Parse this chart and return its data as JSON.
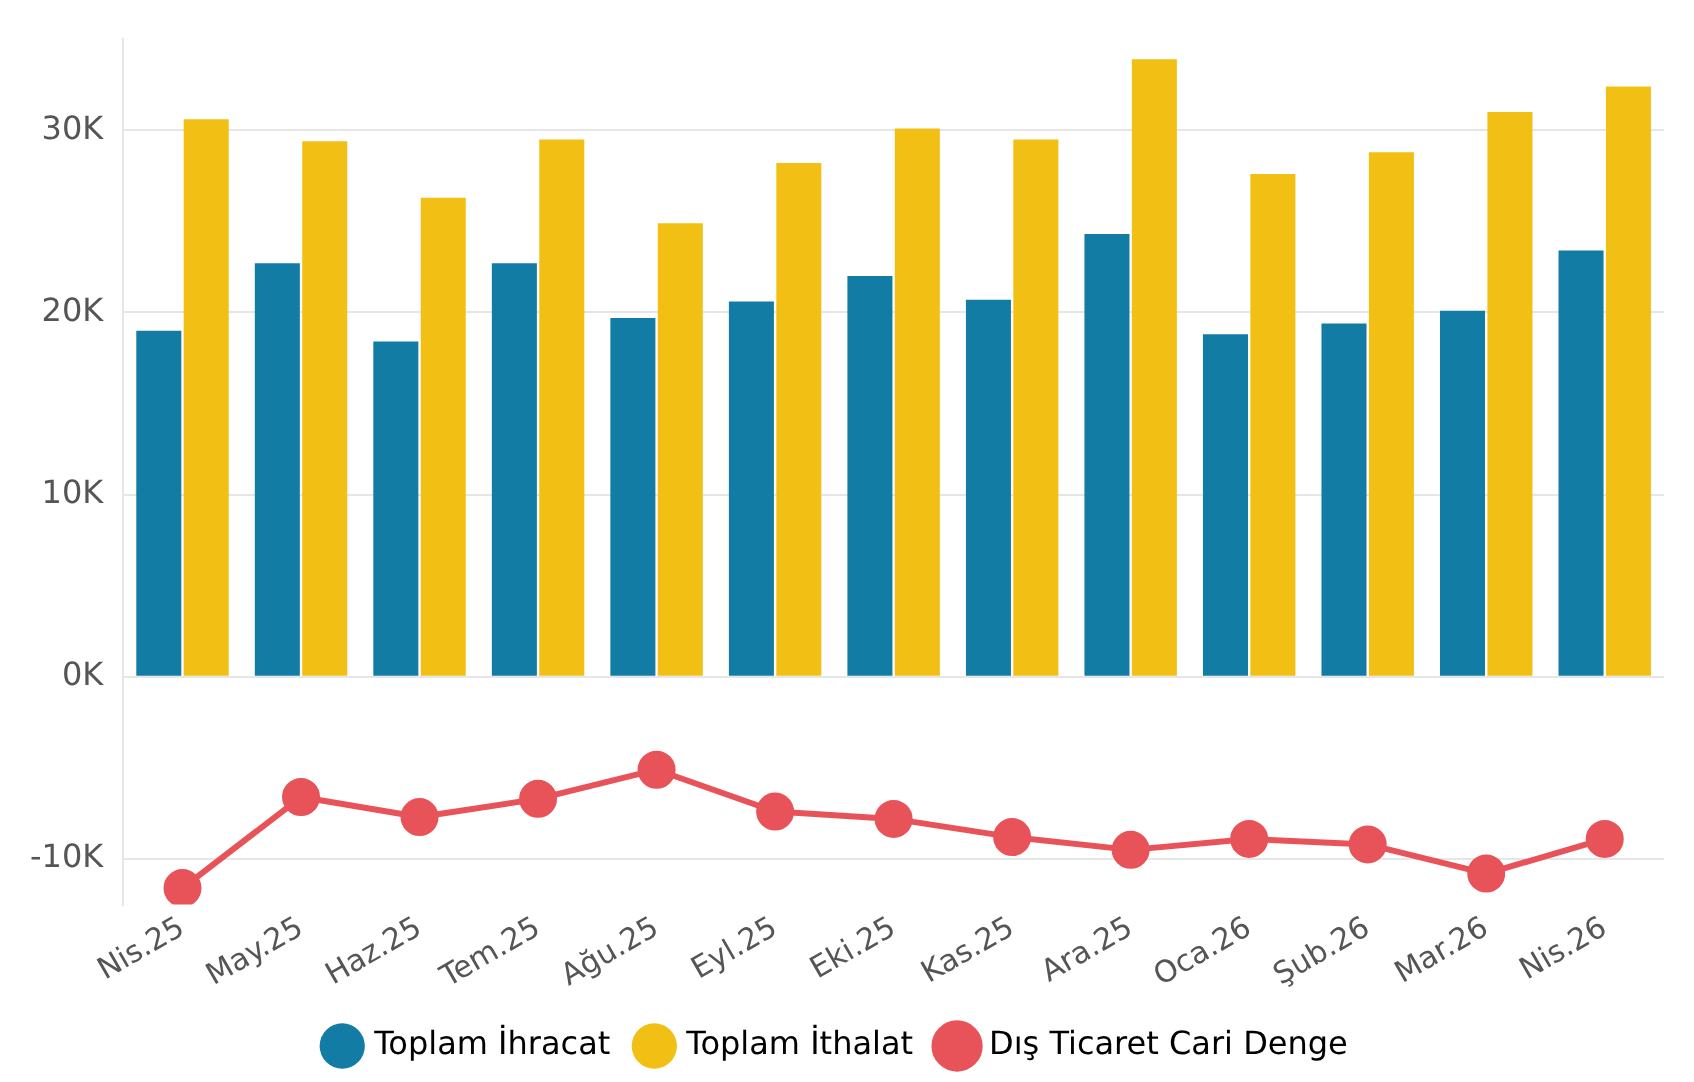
{
  "chart_data": {
    "type": "bar",
    "categories": [
      "Nis.25",
      "May.25",
      "Haz.25",
      "Tem.25",
      "Ağu.25",
      "Eyl.25",
      "Eki.25",
      "Kas.25",
      "Ara.25",
      "Oca.26",
      "Şub.26",
      "Mar.26",
      "Nis.26"
    ],
    "series": [
      {
        "name": "Toplam İhracat",
        "color": "#137ca4",
        "values": [
          19.0,
          22.7,
          18.4,
          22.7,
          19.7,
          20.6,
          22.0,
          20.7,
          24.3,
          18.8,
          19.4,
          20.1,
          23.4
        ]
      },
      {
        "name": "Toplam İthalat",
        "color": "#f2c014",
        "values": [
          30.6,
          29.4,
          26.3,
          29.5,
          24.9,
          28.2,
          30.1,
          29.5,
          33.9,
          27.6,
          28.8,
          31.0,
          32.4
        ]
      },
      {
        "name": "Dış Ticaret Cari Denge",
        "type": "line",
        "color": "#e8535a",
        "values": [
          -11.6,
          -6.6,
          -7.7,
          -6.7,
          -5.1,
          -7.4,
          -7.8,
          -8.8,
          -9.5,
          -8.9,
          -9.2,
          -10.8,
          -8.9
        ]
      }
    ],
    "ylim": [
      -12.5,
      35
    ],
    "yticks": [
      {
        "value": -10,
        "label": "-10K"
      },
      {
        "value": 0,
        "label": "0K"
      },
      {
        "value": 10,
        "label": "10K"
      },
      {
        "value": 20,
        "label": "20K"
      },
      {
        "value": 30,
        "label": "30K"
      }
    ],
    "grid": "y",
    "legend": "bottom",
    "marker": "circle",
    "line_style": "solid"
  }
}
